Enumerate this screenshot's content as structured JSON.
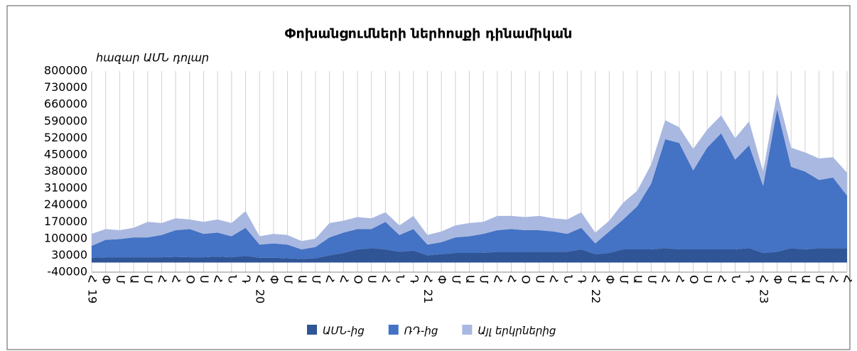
{
  "chart_data": {
    "type": "stacked_area",
    "title": "Փոխանցումների ներհոսքի դինամիկան",
    "y_label": "հազար ԱՄՆ դոլար",
    "categories": [
      "Հ",
      "Փ",
      "Մ",
      "Ա",
      "Մ",
      "Հ",
      "Հ",
      "Օ",
      "Ս",
      "Հ",
      "Ն",
      "Դ",
      "Հ",
      "Փ",
      "Մ",
      "Ա",
      "Մ",
      "Հ",
      "Հ",
      "Օ",
      "Ս",
      "Հ",
      "Ն",
      "Դ",
      "Հ",
      "Փ",
      "Մ",
      "Ա",
      "Մ",
      "Հ",
      "Հ",
      "Օ",
      "Ս",
      "Հ",
      "Ն",
      "Դ",
      "Հ",
      "Փ",
      "Մ",
      "Ա",
      "Մ",
      "Հ",
      "Հ",
      "Օ",
      "Ս",
      "Հ",
      "Ն",
      "Դ",
      "Հ",
      "Փ",
      "Մ",
      "Ա",
      "Մ",
      "Հ",
      "Հ"
    ],
    "year_labels": [
      "19",
      "20",
      "21",
      "22",
      "23"
    ],
    "ylim": [
      -40000,
      800000
    ],
    "yticks": [
      -40000,
      30000,
      100000,
      170000,
      240000,
      310000,
      380000,
      450000,
      520000,
      590000,
      660000,
      730000,
      800000
    ],
    "grid": true,
    "series": [
      {
        "name": "ԱՄՆ-ից",
        "color": "#2f5597",
        "values": [
          20000,
          22000,
          22000,
          22000,
          22000,
          22000,
          24000,
          22000,
          22000,
          25000,
          22000,
          28000,
          20000,
          20000,
          18000,
          15000,
          18000,
          30000,
          40000,
          55000,
          60000,
          55000,
          45000,
          50000,
          30000,
          35000,
          40000,
          40000,
          40000,
          45000,
          45000,
          45000,
          45000,
          45000,
          45000,
          55000,
          35000,
          40000,
          55000,
          55000,
          55000,
          60000,
          55000,
          55000,
          55000,
          55000,
          55000,
          60000,
          40000,
          45000,
          60000,
          55000,
          60000,
          60000,
          60000
        ]
      },
      {
        "name": "ՌԴ-ից",
        "color": "#4472c4",
        "values": [
          50000,
          73000,
          76000,
          83000,
          83000,
          93000,
          111000,
          118000,
          98000,
          100000,
          88000,
          117000,
          55000,
          60000,
          57000,
          40000,
          47000,
          75000,
          85000,
          85000,
          80000,
          115000,
          70000,
          90000,
          45000,
          50000,
          65000,
          70000,
          80000,
          90000,
          95000,
          90000,
          90000,
          85000,
          75000,
          90000,
          45000,
          90000,
          125000,
          180000,
          275000,
          455000,
          445000,
          330000,
          425000,
          485000,
          375000,
          430000,
          280000,
          595000,
          340000,
          325000,
          285000,
          295000,
          220000
        ]
      },
      {
        "name": "Այլ երկրներից",
        "color": "#a9b8e0",
        "values": [
          50000,
          45000,
          37000,
          40000,
          65000,
          50000,
          50000,
          40000,
          50000,
          55000,
          55000,
          70000,
          35000,
          40000,
          40000,
          35000,
          35000,
          60000,
          50000,
          50000,
          45000,
          40000,
          40000,
          55000,
          40000,
          45000,
          50000,
          55000,
          50000,
          60000,
          55000,
          55000,
          60000,
          55000,
          60000,
          65000,
          45000,
          45000,
          70000,
          65000,
          80000,
          80000,
          65000,
          90000,
          75000,
          75000,
          90000,
          100000,
          60000,
          70000,
          80000,
          80000,
          90000,
          85000,
          95000
        ]
      }
    ]
  }
}
